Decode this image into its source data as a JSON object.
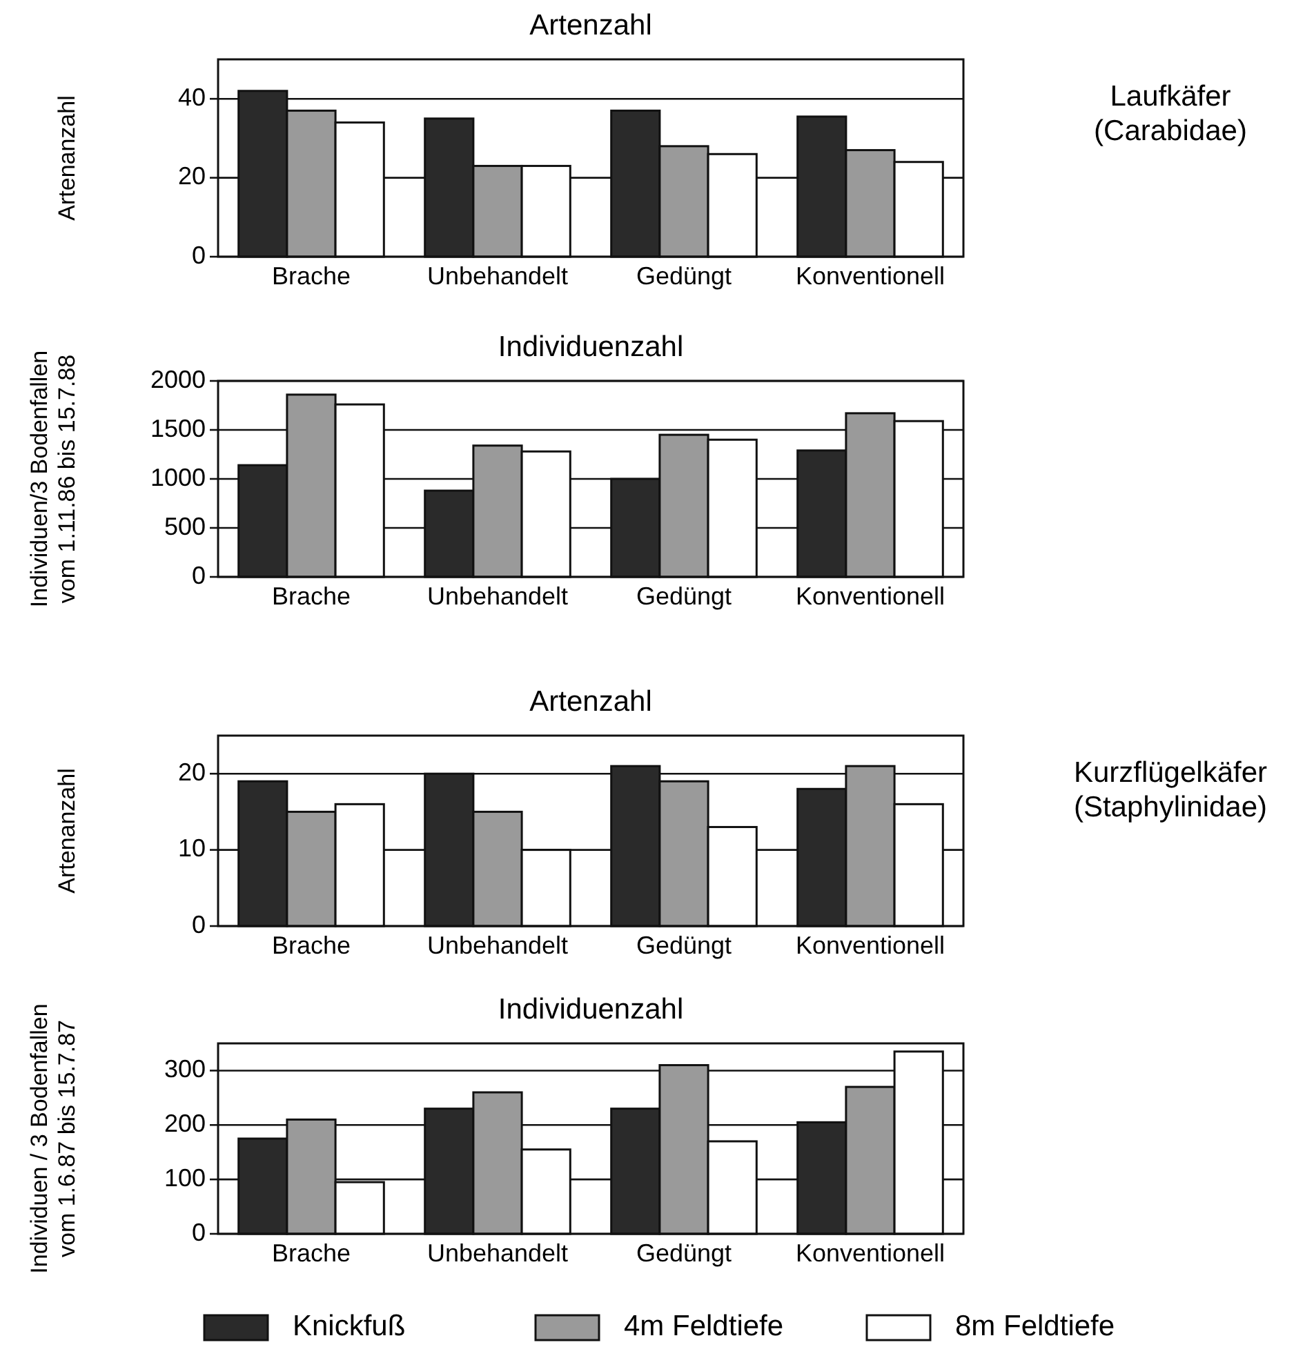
{
  "chart_data": [
    {
      "type": "bar",
      "title": "Artenzahl",
      "ylabel": "Artenanzahl",
      "categories": [
        "Brache",
        "Unbehandelt",
        "Gedüngt",
        "Konventionell"
      ],
      "series": [
        {
          "color": "#2a2a2a",
          "values": [
            42,
            35,
            37,
            35.5
          ]
        },
        {
          "color": "#9a9a9a",
          "values": [
            37,
            23,
            28,
            27
          ]
        },
        {
          "color": "#ffffff",
          "values": [
            34,
            23,
            26,
            24
          ]
        }
      ],
      "ylim": [
        0,
        50
      ],
      "yticks": [
        0,
        20,
        40
      ],
      "grid": "y",
      "annotations": [
        "Laufkäfer\n(Carabidae)"
      ]
    },
    {
      "type": "bar",
      "title": "Individuenzahl",
      "ylabel": "Individuen/3 Bodenfallen\nvom 1.11.86 bis 15.7.88",
      "categories": [
        "Brache",
        "Unbehandelt",
        "Gedüngt",
        "Konventionell"
      ],
      "series": [
        {
          "color": "#2a2a2a",
          "values": [
            1140,
            880,
            1000,
            1290
          ]
        },
        {
          "color": "#9a9a9a",
          "values": [
            1860,
            1340,
            1450,
            1670
          ]
        },
        {
          "color": "#ffffff",
          "values": [
            1760,
            1280,
            1400,
            1590
          ]
        }
      ],
      "ylim": [
        0,
        2000
      ],
      "yticks": [
        0,
        500,
        1000,
        1500,
        2000
      ],
      "grid": "y"
    },
    {
      "type": "bar",
      "title": "Artenzahl",
      "ylabel": "Artenanzahl",
      "categories": [
        "Brache",
        "Unbehandelt",
        "Gedüngt",
        "Konventionell"
      ],
      "series": [
        {
          "color": "#2a2a2a",
          "values": [
            19,
            20,
            21,
            18
          ]
        },
        {
          "color": "#9a9a9a",
          "values": [
            15,
            15,
            19,
            21
          ]
        },
        {
          "color": "#ffffff",
          "values": [
            16,
            10,
            13,
            16
          ]
        }
      ],
      "ylim": [
        0,
        25
      ],
      "yticks": [
        0,
        10,
        20
      ],
      "grid": "y",
      "annotations": [
        "Kurzflügelkäfer\n(Staphylinidae)"
      ]
    },
    {
      "type": "bar",
      "title": "Individuenzahl",
      "ylabel": "Individuen / 3 Bodenfallen\nvom 1.6.87 bis 15.7.87",
      "categories": [
        "Brache",
        "Unbehandelt",
        "Gedüngt",
        "Konventionell"
      ],
      "series": [
        {
          "name": "Knickfuß",
          "color": "#2a2a2a",
          "values": [
            175,
            230,
            230,
            205
          ]
        },
        {
          "name": "4m Feldtiefe",
          "color": "#9a9a9a",
          "values": [
            210,
            260,
            310,
            270
          ]
        },
        {
          "name": "8m Feldtiefe",
          "color": "#ffffff",
          "values": [
            95,
            155,
            170,
            335
          ]
        }
      ],
      "ylim": [
        0,
        350
      ],
      "yticks": [
        0,
        100,
        200,
        300
      ],
      "grid": "y",
      "legend": "bottom"
    }
  ]
}
